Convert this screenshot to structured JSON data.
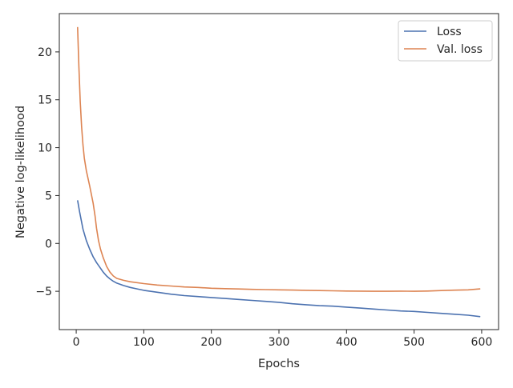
{
  "chart_data": {
    "type": "line",
    "title": "",
    "xlabel": "Epochs",
    "ylabel": "Negative log-likelihood",
    "xlim": [
      -25,
      625
    ],
    "ylim": [
      -9,
      24
    ],
    "xticks": [
      0,
      100,
      200,
      300,
      400,
      500,
      600
    ],
    "xtick_labels": [
      "0",
      "100",
      "200",
      "300",
      "400",
      "500",
      "600"
    ],
    "yticks": [
      -5,
      0,
      5,
      10,
      15,
      20
    ],
    "ytick_labels": [
      "−5",
      "0",
      "5",
      "10",
      "15",
      "20"
    ],
    "grid": false,
    "legend_position": "top-right",
    "series": [
      {
        "name": "Loss",
        "color": "#4c72b0",
        "x": [
          2,
          5,
          10,
          15,
          20,
          25,
          30,
          35,
          40,
          45,
          50,
          55,
          60,
          70,
          80,
          90,
          100,
          120,
          140,
          160,
          180,
          200,
          220,
          240,
          260,
          280,
          300,
          320,
          340,
          360,
          380,
          400,
          420,
          440,
          460,
          480,
          500,
          520,
          540,
          560,
          580,
          598
        ],
        "y": [
          4.5,
          3.3,
          1.5,
          0.3,
          -0.6,
          -1.4,
          -2.0,
          -2.5,
          -3.0,
          -3.4,
          -3.7,
          -3.95,
          -4.15,
          -4.4,
          -4.6,
          -4.75,
          -4.9,
          -5.1,
          -5.3,
          -5.45,
          -5.55,
          -5.65,
          -5.75,
          -5.85,
          -5.95,
          -6.05,
          -6.15,
          -6.3,
          -6.4,
          -6.5,
          -6.55,
          -6.65,
          -6.75,
          -6.85,
          -6.95,
          -7.05,
          -7.1,
          -7.2,
          -7.3,
          -7.4,
          -7.5,
          -7.65
        ]
      },
      {
        "name": "Val. loss",
        "color": "#dd8452",
        "x": [
          2,
          4,
          6,
          8,
          10,
          12,
          15,
          20,
          25,
          28,
          30,
          33,
          36,
          40,
          45,
          50,
          55,
          60,
          70,
          80,
          100,
          120,
          140,
          160,
          180,
          200,
          220,
          240,
          260,
          280,
          300,
          320,
          340,
          360,
          380,
          400,
          420,
          440,
          460,
          480,
          500,
          520,
          540,
          560,
          580,
          598
        ],
        "y": [
          22.6,
          18.5,
          14.8,
          12.2,
          10.3,
          8.9,
          7.6,
          6.0,
          4.2,
          2.8,
          1.6,
          0.3,
          -0.6,
          -1.5,
          -2.4,
          -3.0,
          -3.4,
          -3.65,
          -3.85,
          -4.0,
          -4.2,
          -4.35,
          -4.45,
          -4.55,
          -4.6,
          -4.68,
          -4.72,
          -4.76,
          -4.8,
          -4.82,
          -4.85,
          -4.87,
          -4.9,
          -4.92,
          -4.95,
          -4.97,
          -4.98,
          -5.0,
          -5.0,
          -4.98,
          -5.0,
          -4.97,
          -4.92,
          -4.88,
          -4.85,
          -4.75
        ]
      }
    ]
  }
}
